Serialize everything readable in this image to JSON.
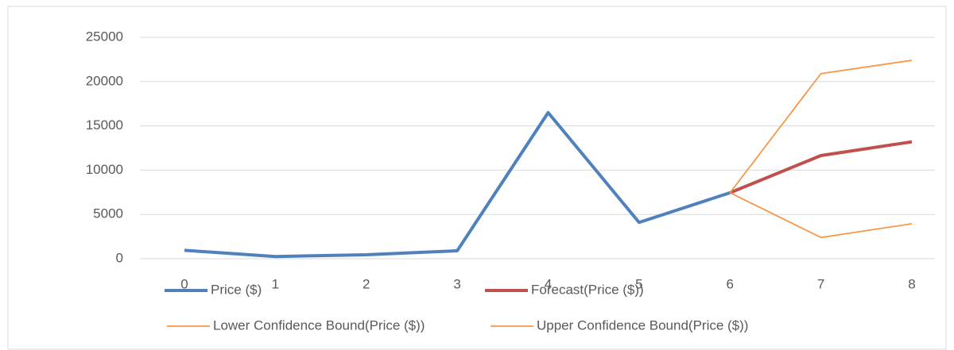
{
  "chart_data": {
    "type": "line",
    "x": [
      0,
      1,
      2,
      3,
      4,
      5,
      6,
      7,
      8
    ],
    "xlim": [
      0,
      8
    ],
    "series": [
      {
        "name": "Price ($)",
        "color": "#4f81bd",
        "values": [
          950,
          250,
          450,
          900,
          16500,
          4100,
          7450,
          null,
          null
        ]
      },
      {
        "name": "Forecast(Price ($))",
        "color": "#c0504d",
        "values": [
          null,
          null,
          null,
          null,
          null,
          null,
          7450,
          11650,
          13200
        ]
      },
      {
        "name": "Lower Confidence Bound(Price ($))",
        "color": "#f79646",
        "values": [
          null,
          null,
          null,
          null,
          null,
          null,
          7450,
          2400,
          3950
        ]
      },
      {
        "name": "Upper Confidence Bound(Price ($))",
        "color": "#f79646",
        "values": [
          null,
          null,
          null,
          null,
          null,
          null,
          7450,
          20900,
          22400
        ]
      }
    ],
    "ylim": [
      0,
      25000
    ],
    "yticks": [
      0,
      5000,
      10000,
      15000,
      20000,
      25000
    ],
    "grid": true,
    "legend": "bottom"
  }
}
